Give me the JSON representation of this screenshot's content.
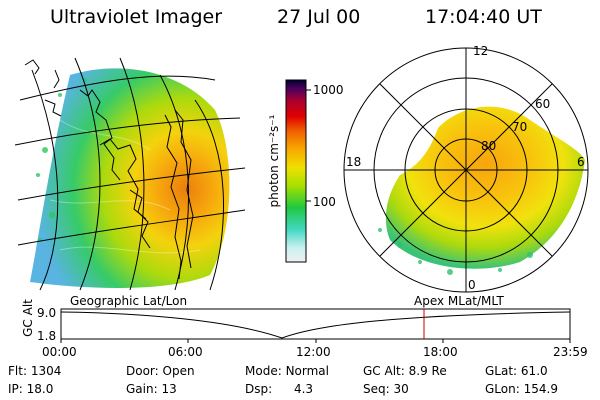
{
  "header": {
    "instrument": "Ultraviolet Imager",
    "date": "27 Jul 00",
    "time": "17:04:40 UT"
  },
  "colorbar": {
    "unit_label": "photon cm⁻²s⁻¹",
    "ticks": [
      "1000",
      "100"
    ],
    "scale": "log"
  },
  "polar_plot": {
    "mlt_labels": [
      "12",
      "18",
      "6",
      "0"
    ],
    "mlat_labels": [
      "60",
      "70",
      "80"
    ]
  },
  "panels": {
    "left_caption": "Geographic Lat/Lon",
    "right_caption": "Apex MLat/MLT"
  },
  "altitude_plot": {
    "ylabel": "GC Alt",
    "yticks": [
      "9.0",
      "1.8"
    ],
    "xticks": [
      "00:00",
      "06:00",
      "12:00",
      "18:00",
      "23:59"
    ],
    "current_marker_time": "17:04:40",
    "marker_color": "#cc0000"
  },
  "footer": {
    "row1": [
      {
        "key": "Flt:",
        "value": "1304"
      },
      {
        "key": "Door:",
        "value": "Open"
      },
      {
        "key": "Mode:",
        "value": "Normal"
      },
      {
        "key": "GC Alt:",
        "value": "8.9 Re"
      },
      {
        "key": "GLat:",
        "value": "61.0"
      }
    ],
    "row2": [
      {
        "key": "IP:",
        "value": "18.0"
      },
      {
        "key": "Gain:",
        "value": "13"
      },
      {
        "key": "Dsp:",
        "value": "4.3"
      },
      {
        "key": "Seq:",
        "value": "30"
      },
      {
        "key": "GLon:",
        "value": "154.9"
      }
    ]
  }
}
